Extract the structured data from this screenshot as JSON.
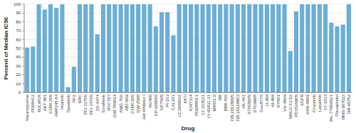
{
  "chart_data": {
    "type": "bar",
    "categories": [
      "Staurosporine",
      "PD98412",
      "MJL9618",
      "AKT-481",
      "CHIR-258",
      "AMP245.84",
      "Imatinib",
      "Dasatinib",
      "PF2",
      "SRC",
      "PCI 32765",
      "PCI 34765",
      "ZD-6474",
      "Sorafenib",
      "RYCT87",
      "GW-786034",
      "AMG-706",
      "ABT-869",
      "CHIR-265",
      "GW-2580",
      "Jak Inhibitor I",
      "AG490",
      "CP-690550",
      "GFT505",
      "PI-103",
      "CAL101",
      "LC2940032",
      "AKTi",
      "ICR7114",
      "PD98059.1",
      "LY-333531",
      "LY-93031.31",
      "MK811.0",
      "RB",
      "BB8-706",
      "DB-20128095",
      "DB-20120803",
      "VK-461",
      "ST065065",
      "STO9988",
      "Goo8776",
      "H-489",
      "M-489",
      "KY001",
      "VH-4869",
      "MALO-13.52",
      "PD1536905",
      "EGF8",
      "ERK-5869",
      "Crizotinib",
      "Lapatinib",
      "CI-1033",
      "JKL-77956521",
      "Flavopiridol",
      "BMS-387032",
      "DB-45752"
    ],
    "values": [
      51,
      52,
      100,
      94,
      100,
      96,
      100,
      6,
      29,
      100,
      100,
      100,
      66,
      100,
      100,
      100,
      100,
      100,
      100,
      100,
      100,
      100,
      75,
      91,
      91,
      65,
      100,
      100,
      100,
      100,
      100,
      100,
      100,
      100,
      100,
      100,
      100,
      100,
      100,
      100,
      100,
      100,
      100,
      100,
      100,
      47,
      92,
      100,
      100,
      100,
      100,
      100,
      79,
      75,
      77,
      100
    ],
    "color": "#6BAED6",
    "xlabel": "Drug",
    "ylabel": "Percent of Median IC50",
    "ylim": [
      0,
      100
    ],
    "yticks": [
      0,
      10,
      20,
      30,
      40,
      50,
      60,
      70,
      80,
      90,
      100
    ],
    "grid": true
  }
}
